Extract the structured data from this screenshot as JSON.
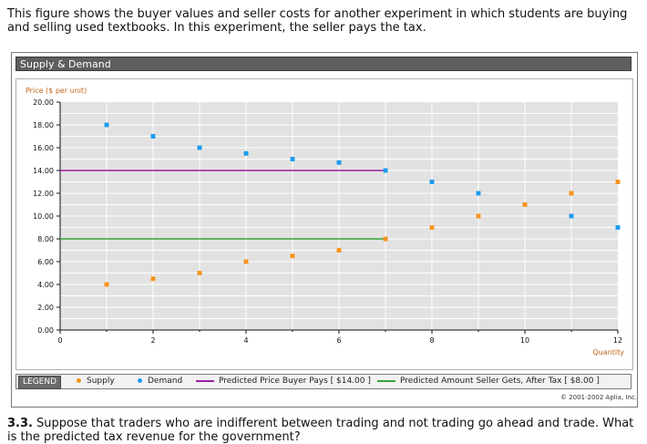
{
  "intro_text": "This figure shows the buyer values and seller costs for another experiment in which students are buying and selling used textbooks. In this experiment, the seller pays the tax.",
  "panel_title": "Supply & Demand",
  "legend": {
    "tag": "LEGEND",
    "supply": "Supply",
    "demand": "Demand",
    "buyer_line": "Predicted Price Buyer Pays [ $14.00 ]",
    "seller_line": "Predicted Amount Seller Gets, After Tax [ $8.00 ]"
  },
  "copyright": "© 2001-2002 Aplia, Inc.",
  "question": {
    "number": "3.3.",
    "text": "Suppose that traders who are indifferent between trading and not trading go ahead and trade. What is the predicted tax revenue for the government?"
  },
  "colors": {
    "supply": "#f7941d",
    "demand": "#1e9cf0",
    "buyer_line": "#9b1fa8",
    "seller_line": "#3aa33a",
    "axis_label": "#c0661a"
  },
  "chart_data": {
    "type": "scatter",
    "ylabel": "Price ($ per unit)",
    "xlabel": "Quantity",
    "xlim": [
      0,
      12
    ],
    "ylim": [
      0,
      20
    ],
    "x_ticks": [
      "0",
      "2",
      "4",
      "6",
      "8",
      "10",
      "12"
    ],
    "y_ticks": [
      "0.00",
      "2.00",
      "4.00",
      "6.00",
      "8.00",
      "10.00",
      "12.00",
      "14.00",
      "16.00",
      "18.00",
      "20.00"
    ],
    "grid": true,
    "series": [
      {
        "name": "Supply",
        "points": [
          [
            1,
            4
          ],
          [
            2,
            4.5
          ],
          [
            3,
            5
          ],
          [
            4,
            6
          ],
          [
            5,
            6.5
          ],
          [
            6,
            7
          ],
          [
            7,
            8
          ],
          [
            8,
            9
          ],
          [
            9,
            10
          ],
          [
            10,
            11
          ],
          [
            11,
            12
          ],
          [
            12,
            13
          ]
        ]
      },
      {
        "name": "Demand",
        "points": [
          [
            1,
            18
          ],
          [
            2,
            17
          ],
          [
            3,
            16
          ],
          [
            4,
            15.5
          ],
          [
            5,
            15
          ],
          [
            6,
            14.7
          ],
          [
            7,
            14
          ],
          [
            8,
            13
          ],
          [
            9,
            12
          ],
          [
            11,
            10
          ],
          [
            12,
            9
          ]
        ]
      }
    ],
    "lines": [
      {
        "name": "Predicted Price Buyer Pays [ $14.00 ]",
        "y": 14,
        "x_from": 0,
        "x_to": 7
      },
      {
        "name": "Predicted Amount Seller Gets, After Tax [ $8.00 ]",
        "y": 8,
        "x_from": 0,
        "x_to": 7
      }
    ]
  }
}
